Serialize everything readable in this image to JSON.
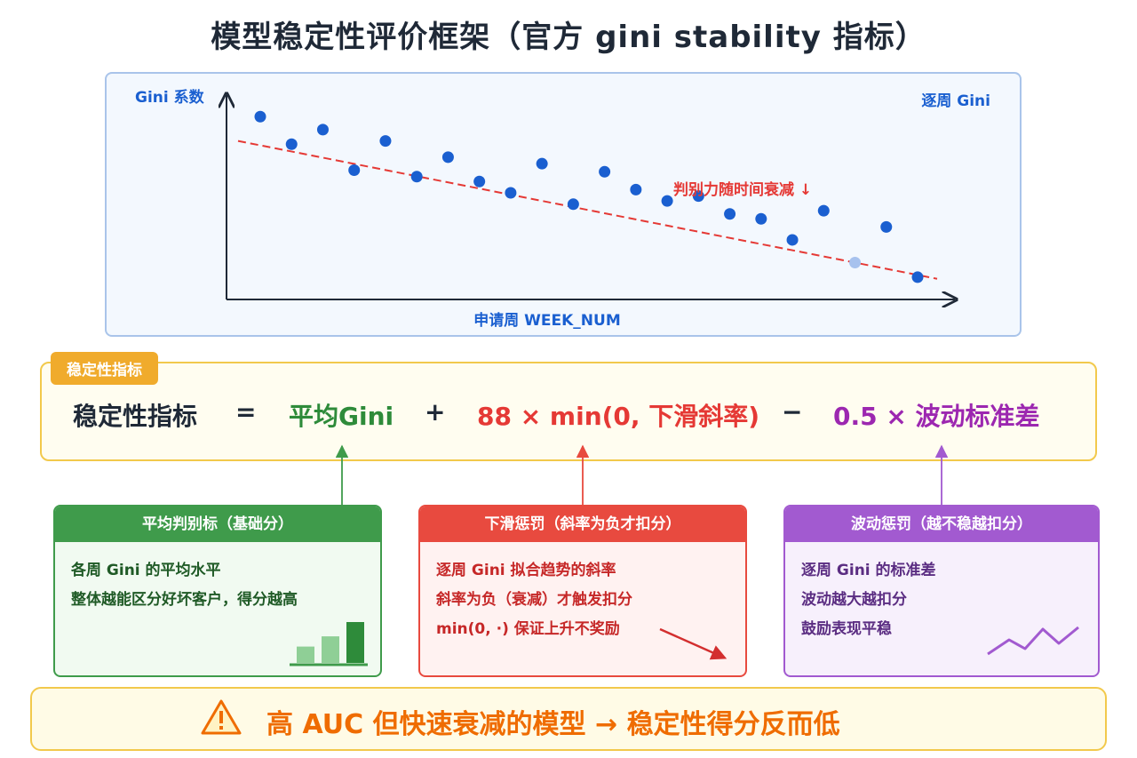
{
  "title": "模型稳定性评价框架（官方 gini stability 指标）",
  "chart_data": {
    "type": "scatter",
    "ylabel": "Gini 系数",
    "xlabel": "申请周 WEEK_NUM",
    "legend": "逐周 Gini",
    "legend_placement": "top-right",
    "annotation": "判别力随时间衰减 ↓",
    "x": [
      1,
      2,
      3,
      4,
      5,
      6,
      7,
      8,
      9,
      10,
      11,
      12,
      13,
      14,
      15,
      16,
      17,
      18,
      19,
      20,
      21,
      22
    ],
    "y": [
      0.9,
      0.73,
      0.82,
      0.57,
      0.75,
      0.53,
      0.65,
      0.5,
      0.43,
      0.61,
      0.36,
      0.56,
      0.45,
      0.38,
      0.41,
      0.3,
      0.27,
      0.14,
      0.32,
      0.0,
      0.22,
      -0.09
    ],
    "highlight_index": 19,
    "trend": {
      "type": "linear",
      "style": "dashed",
      "color": "#e53935",
      "y_start": 0.75,
      "y_end": -0.1
    },
    "point_color": "#1a5fd0",
    "highlight_color": "#a7c2ee",
    "axes": {
      "show_ticks": false,
      "grid": false
    }
  },
  "formula": {
    "tag": "稳定性指标",
    "lhs": "稳定性指标",
    "eq": "=",
    "avg": "平均Gini",
    "plus": "+",
    "slope": "88 × min(0, 下滑斜率)",
    "minus": "−",
    "vol": "0.5 × 波动标准差"
  },
  "cards": {
    "avg": {
      "title": "平均判别标（基础分）",
      "lines": [
        "各周 Gini 的平均水平",
        "整体越能区分好坏客户，得分越高"
      ],
      "icon": "bar-chart-icon",
      "bar_levels": [
        0.4,
        0.65,
        1.0
      ]
    },
    "slope": {
      "title": "下滑惩罚（斜率为负才扣分）",
      "lines": [
        "逐周 Gini 拟合趋势的斜率",
        "斜率为负（衰减）才触发扣分",
        "min(0, ·) 保证上升不奖励"
      ],
      "icon": "down-trend-arrow-icon"
    },
    "vol": {
      "title": "波动惩罚（越不稳越扣分）",
      "lines": [
        "逐周 Gini 的标准差",
        "波动越大越扣分",
        "鼓励表现平稳"
      ],
      "icon": "zigzag-line-icon"
    }
  },
  "banner": {
    "icon": "warning-icon",
    "text": "高 AUC 但快速衰减的模型 → 稳定性得分反而低"
  },
  "colors": {
    "blue": "#1a5fd0",
    "green": "#3f9b4b",
    "red": "#e84a3f",
    "purple": "#a25ad0",
    "orange": "#ef6c00",
    "yellow": "#f2c94c"
  }
}
